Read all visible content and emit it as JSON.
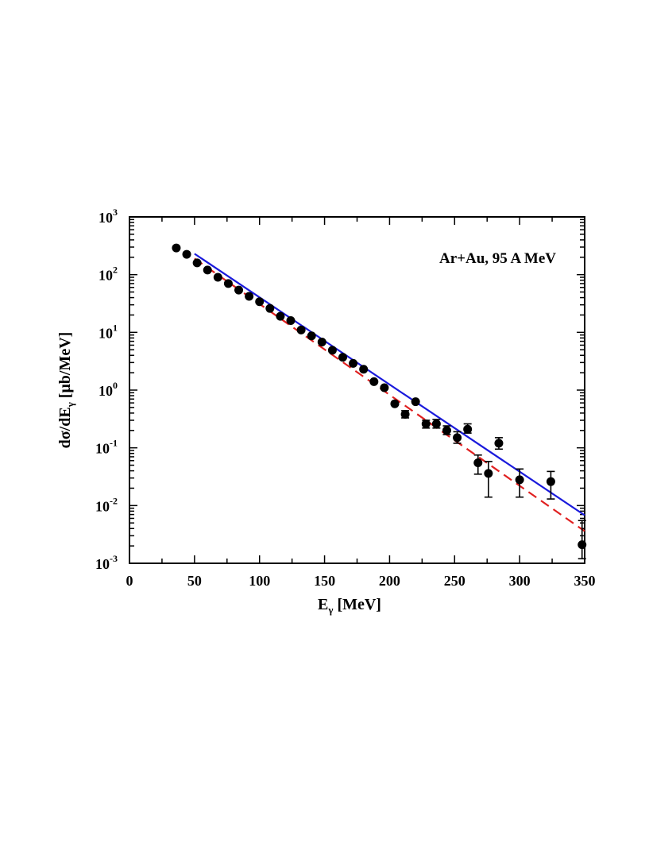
{
  "chart_data": {
    "type": "scatter",
    "title": "",
    "annotation": "Ar+Au,  95 A MeV",
    "xlabel": {
      "base": "E",
      "sub": "γ",
      "rest": " [MeV]"
    },
    "ylabel": {
      "prefix": "dσ/dE",
      "sub": "γ",
      "rest": " [μb/MeV]"
    },
    "x_axis": {
      "min": 0,
      "max": 350,
      "major_ticks": [
        0,
        50,
        100,
        150,
        200,
        250,
        300,
        350
      ],
      "minor_step": 25
    },
    "y_axis": {
      "scale": "log",
      "min": 0.001,
      "max": 1000,
      "major_ticks": [
        {
          "value": 0.001,
          "base": "10",
          "exp": "-3"
        },
        {
          "value": 0.01,
          "base": "10",
          "exp": "-2"
        },
        {
          "value": 0.1,
          "base": "10",
          "exp": "-1"
        },
        {
          "value": 1,
          "base": "10",
          "exp": "0"
        },
        {
          "value": 10,
          "base": "10",
          "exp": "1"
        },
        {
          "value": 100,
          "base": "10",
          "exp": "2"
        },
        {
          "value": 1000,
          "base": "10",
          "exp": "3"
        }
      ]
    },
    "series": [
      {
        "name": "data",
        "kind": "points",
        "color": "#000000",
        "points": [
          {
            "x": 36,
            "y": 290
          },
          {
            "x": 44,
            "y": 225
          },
          {
            "x": 52,
            "y": 160
          },
          {
            "x": 60,
            "y": 120
          },
          {
            "x": 68,
            "y": 90
          },
          {
            "x": 76,
            "y": 70
          },
          {
            "x": 84,
            "y": 54
          },
          {
            "x": 92,
            "y": 42
          },
          {
            "x": 100,
            "y": 34
          },
          {
            "x": 108,
            "y": 26
          },
          {
            "x": 116,
            "y": 19
          },
          {
            "x": 124,
            "y": 16
          },
          {
            "x": 132,
            "y": 11
          },
          {
            "x": 140,
            "y": 8.7
          },
          {
            "x": 148,
            "y": 6.8
          },
          {
            "x": 156,
            "y": 4.9
          },
          {
            "x": 164,
            "y": 3.7
          },
          {
            "x": 172,
            "y": 2.9
          },
          {
            "x": 180,
            "y": 2.3
          },
          {
            "x": 188,
            "y": 1.4
          },
          {
            "x": 196,
            "y": 1.1
          },
          {
            "x": 204,
            "y": 0.58
          },
          {
            "x": 212,
            "y": 0.38,
            "err_lo": 0.33,
            "err_hi": 0.44
          },
          {
            "x": 220,
            "y": 0.63
          },
          {
            "x": 228,
            "y": 0.26,
            "err_lo": 0.22,
            "err_hi": 0.3
          },
          {
            "x": 236,
            "y": 0.26,
            "err_lo": 0.22,
            "err_hi": 0.31
          },
          {
            "x": 244,
            "y": 0.2,
            "err_lo": 0.17,
            "err_hi": 0.24
          },
          {
            "x": 252,
            "y": 0.15,
            "err_lo": 0.12,
            "err_hi": 0.19
          },
          {
            "x": 260,
            "y": 0.21,
            "err_lo": 0.18,
            "err_hi": 0.26
          },
          {
            "x": 268,
            "y": 0.055,
            "err_lo": 0.035,
            "err_hi": 0.075
          },
          {
            "x": 276,
            "y": 0.036,
            "err_lo": 0.014,
            "err_hi": 0.058
          },
          {
            "x": 284,
            "y": 0.12,
            "err_lo": 0.095,
            "err_hi": 0.15
          },
          {
            "x": 300,
            "y": 0.028,
            "err_lo": 0.014,
            "err_hi": 0.043
          },
          {
            "x": 324,
            "y": 0.026,
            "err_lo": 0.013,
            "err_hi": 0.039
          },
          {
            "x": 348,
            "y": 0.0021,
            "err_lo": 0.0012,
            "err_hi": 0.0055
          }
        ]
      },
      {
        "name": "fit-solid",
        "kind": "line",
        "style": "solid",
        "color": "#1a1adc",
        "x": [
          50,
          350
        ],
        "y": [
          230,
          0.0068
        ]
      },
      {
        "name": "fit-dashed",
        "kind": "line",
        "style": "dashed",
        "color": "#e02020",
        "x": [
          50,
          350
        ],
        "y": [
          190,
          0.0036
        ]
      }
    ]
  }
}
